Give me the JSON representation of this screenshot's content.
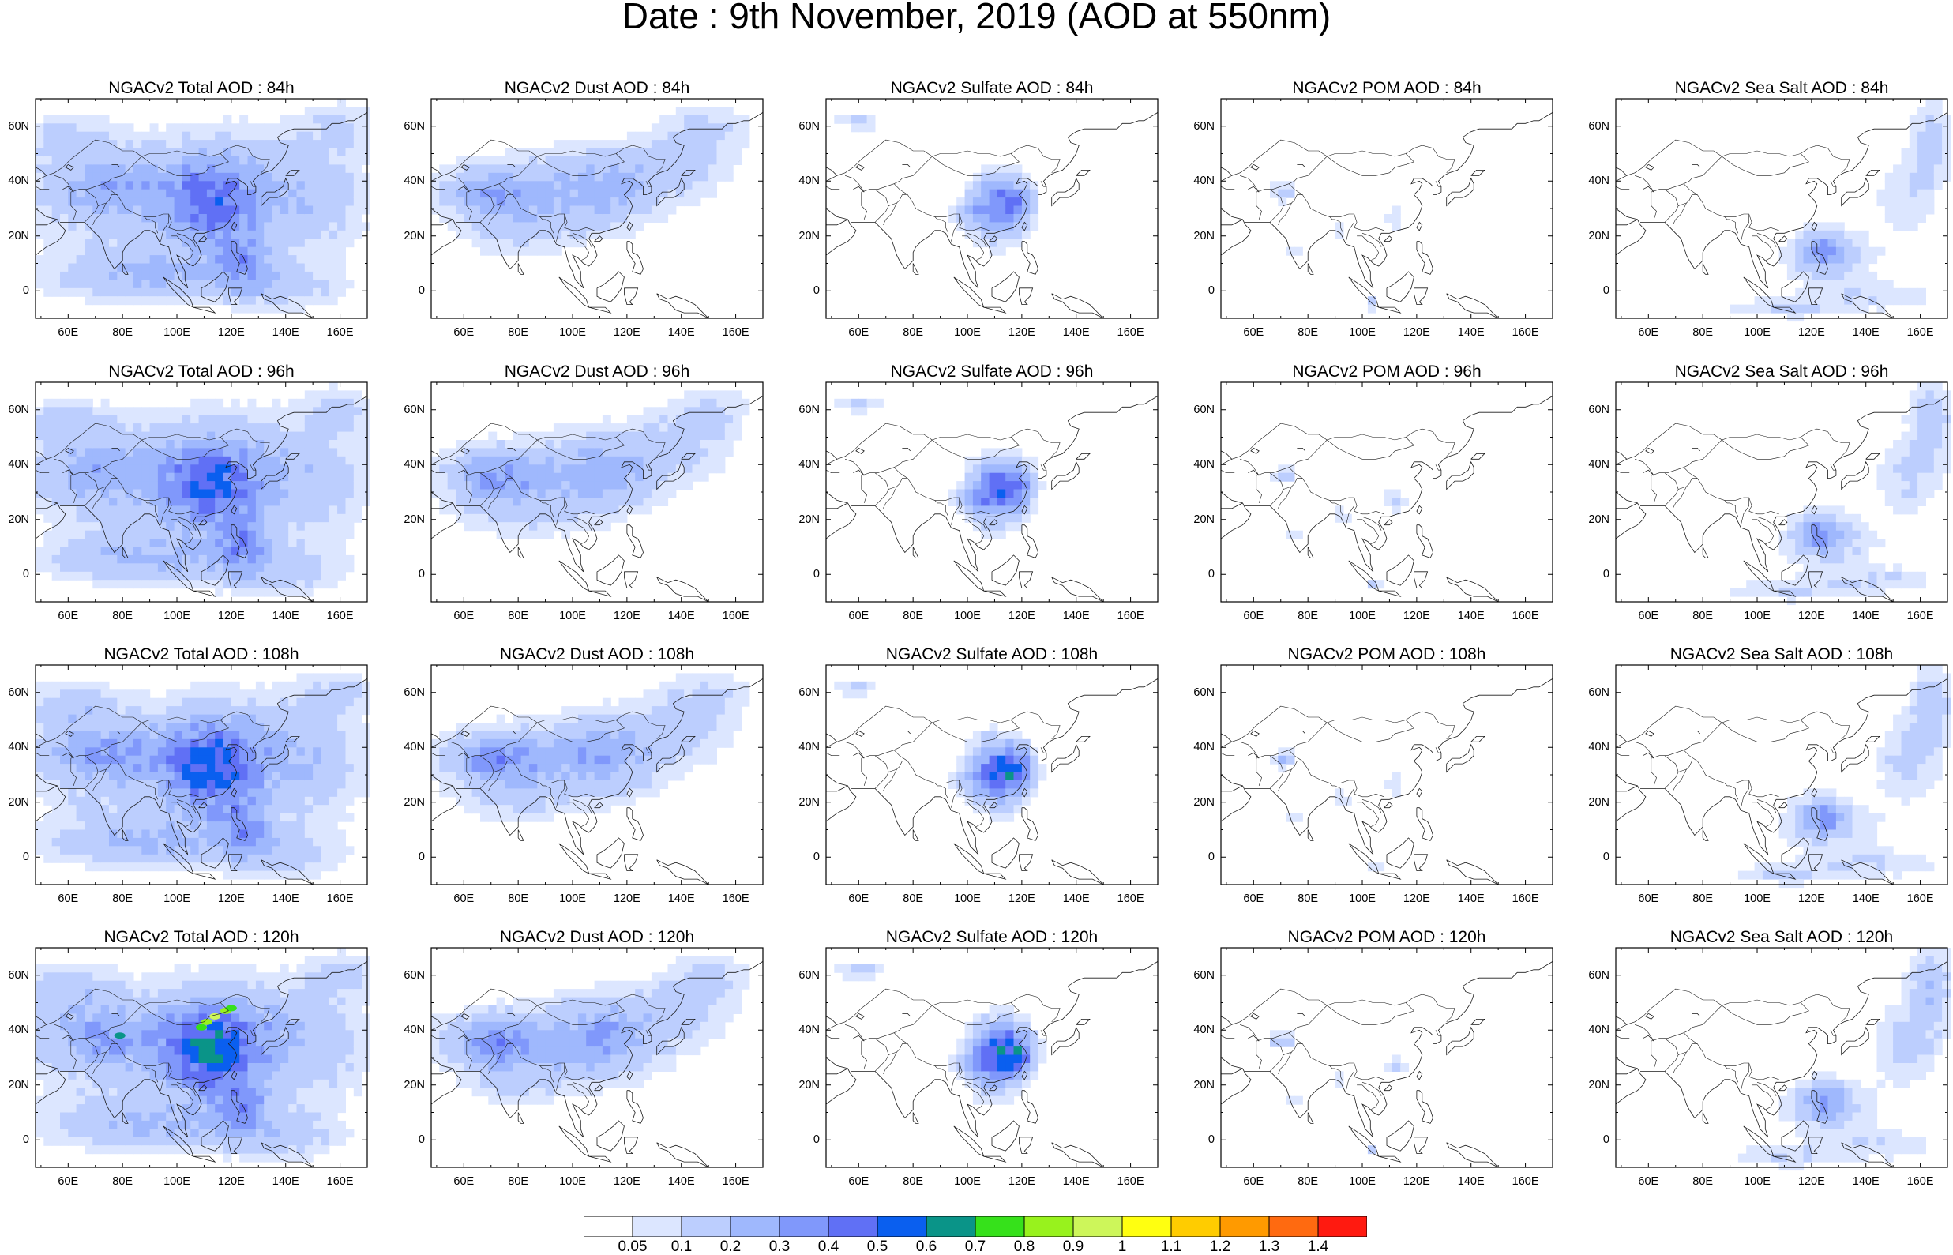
{
  "title": "Date : 9th November, 2019 (AOD at 550nm)",
  "x_ticks": [
    "60E",
    "80E",
    "100E",
    "120E",
    "140E",
    "160E"
  ],
  "y_ticks": [
    "60N",
    "40N",
    "20N",
    "0"
  ],
  "panels": [
    {
      "title": "NGACv2 Total AOD : 84h",
      "species": "total",
      "hour": 84
    },
    {
      "title": "NGACv2 Dust AOD : 84h",
      "species": "dust",
      "hour": 84
    },
    {
      "title": "NGACv2 Sulfate AOD : 84h",
      "species": "sulfate",
      "hour": 84
    },
    {
      "title": "NGACv2 POM AOD : 84h",
      "species": "pom",
      "hour": 84
    },
    {
      "title": "NGACv2 Sea Salt AOD : 84h",
      "species": "seasalt",
      "hour": 84
    },
    {
      "title": "NGACv2 Total AOD : 96h",
      "species": "total",
      "hour": 96
    },
    {
      "title": "NGACv2 Dust AOD : 96h",
      "species": "dust",
      "hour": 96
    },
    {
      "title": "NGACv2 Sulfate AOD : 96h",
      "species": "sulfate",
      "hour": 96
    },
    {
      "title": "NGACv2 POM AOD : 96h",
      "species": "pom",
      "hour": 96
    },
    {
      "title": "NGACv2 Sea Salt AOD : 96h",
      "species": "seasalt",
      "hour": 96
    },
    {
      "title": "NGACv2 Total AOD : 108h",
      "species": "total",
      "hour": 108
    },
    {
      "title": "NGACv2 Dust AOD : 108h",
      "species": "dust",
      "hour": 108
    },
    {
      "title": "NGACv2 Sulfate AOD : 108h",
      "species": "sulfate",
      "hour": 108
    },
    {
      "title": "NGACv2 POM AOD : 108h",
      "species": "pom",
      "hour": 108
    },
    {
      "title": "NGACv2 Sea Salt AOD : 108h",
      "species": "seasalt",
      "hour": 108
    },
    {
      "title": "NGACv2 Total AOD : 120h",
      "species": "total",
      "hour": 120
    },
    {
      "title": "NGACv2 Dust AOD : 120h",
      "species": "dust",
      "hour": 120
    },
    {
      "title": "NGACv2 Sulfate AOD : 120h",
      "species": "sulfate",
      "hour": 120
    },
    {
      "title": "NGACv2 POM AOD : 120h",
      "species": "pom",
      "hour": 120
    },
    {
      "title": "NGACv2 Sea Salt  AOD : 120h",
      "species": "seasalt",
      "hour": 120
    }
  ],
  "colorbar": {
    "labels": [
      "0.05",
      "0.1",
      "0.2",
      "0.3",
      "0.4",
      "0.5",
      "0.6",
      "0.7",
      "0.8",
      "0.9",
      "1",
      "1.1",
      "1.2",
      "1.3",
      "1.4"
    ],
    "colors": [
      "#ffffff",
      "#dce6ff",
      "#bccefe",
      "#9fb8fd",
      "#8098fb",
      "#6070f5",
      "#0a5fef",
      "#0a9488",
      "#36e11b",
      "#98f21d",
      "#cdf65a",
      "#ffff10",
      "#ffcc00",
      "#ff9a00",
      "#ff6a10",
      "#ff1a10"
    ]
  }
}
